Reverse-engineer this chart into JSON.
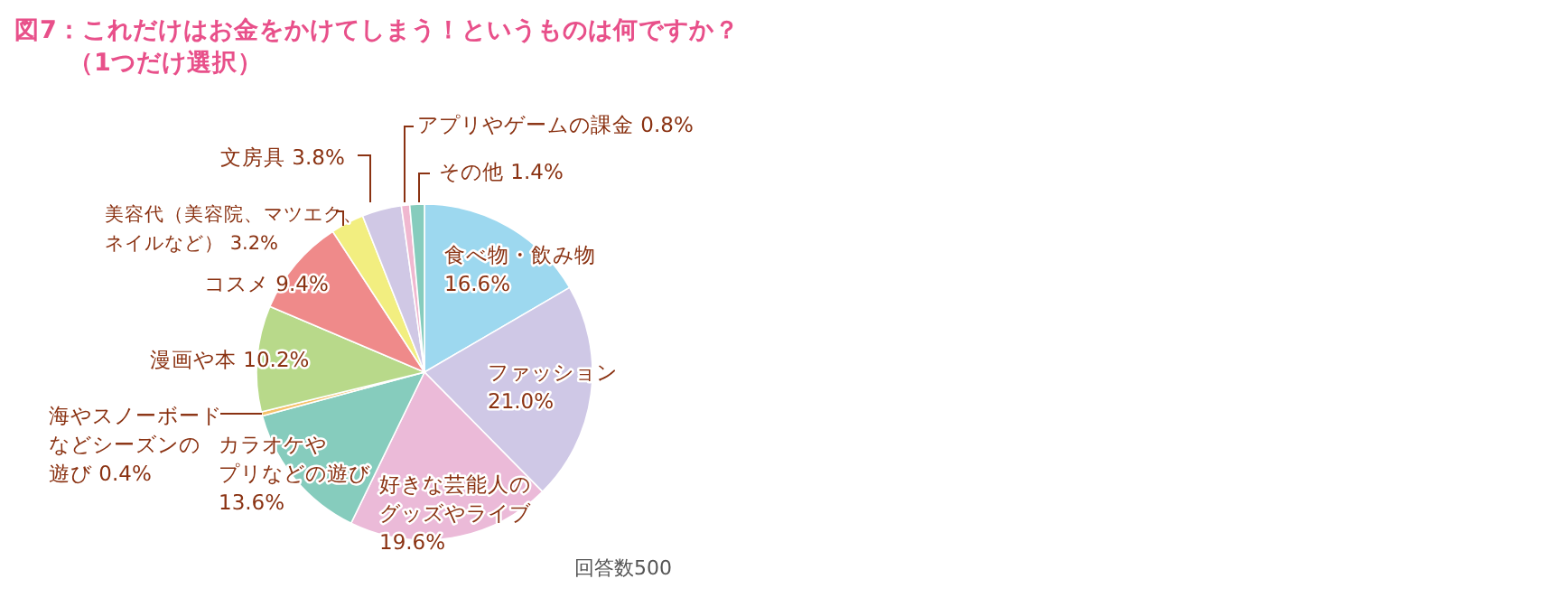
{
  "chart_data": {
    "type": "pie",
    "title": "図7：これだけはお金をかけてしまう！というものは何ですか？",
    "subtitle": "（1つだけ選択）",
    "categories": [
      "食べ物・飲み物",
      "ファッション",
      "好きな芸能人のグッズやライブ",
      "カラオケやプリなどの遊び",
      "海やスノーボードなどシーズンの遊び",
      "漫画や本",
      "コスメ",
      "美容代（美容院、マツエク、ネイルなど）",
      "文房具",
      "アプリやゲームの課金",
      "その他"
    ],
    "values": [
      16.6,
      21.0,
      19.6,
      13.6,
      0.4,
      10.2,
      9.4,
      3.2,
      3.8,
      0.8,
      1.4
    ],
    "value_labels": [
      "16.6%",
      "21.0%",
      "19.6%",
      "13.6%",
      "0.4%",
      "10.2%",
      "9.4%",
      "3.2%",
      "3.8%",
      "0.8%",
      "1.4%"
    ],
    "colors": [
      "#9dd8ef",
      "#cfc8e6",
      "#ebbad8",
      "#86ccbd",
      "#f5c26a",
      "#b8d98a",
      "#ef8a8a",
      "#f2ee80",
      "#d0c8e5",
      "#f0b8d0",
      "#86ccbd"
    ],
    "annotations": [
      "回答数500"
    ]
  }
}
